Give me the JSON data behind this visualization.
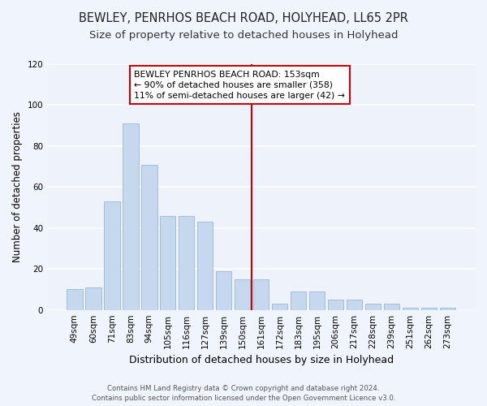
{
  "title1": "BEWLEY, PENRHOS BEACH ROAD, HOLYHEAD, LL65 2PR",
  "title2": "Size of property relative to detached houses in Holyhead",
  "xlabel": "Distribution of detached houses by size in Holyhead",
  "ylabel": "Number of detached properties",
  "categories": [
    "49sqm",
    "60sqm",
    "71sqm",
    "83sqm",
    "94sqm",
    "105sqm",
    "116sqm",
    "127sqm",
    "139sqm",
    "150sqm",
    "161sqm",
    "172sqm",
    "183sqm",
    "195sqm",
    "206sqm",
    "217sqm",
    "228sqm",
    "239sqm",
    "251sqm",
    "262sqm",
    "273sqm"
  ],
  "bar_values": [
    10,
    11,
    53,
    91,
    71,
    46,
    46,
    43,
    19,
    15,
    15,
    3,
    9,
    9,
    5,
    5,
    3,
    3,
    1,
    1,
    1
  ],
  "bar_color": "#c5d8ed",
  "bar_edgecolor": "#9ab8d8",
  "background_color": "#eef2fa",
  "grid_color": "#ffffff",
  "vline_color": "#cc0000",
  "annotation_text": "BEWLEY PENRHOS BEACH ROAD: 153sqm\n← 90% of detached houses are smaller (358)\n11% of semi-detached houses are larger (42) →",
  "annotation_box_color": "#cc0000",
  "ylim": [
    0,
    120
  ],
  "yticks": [
    0,
    20,
    40,
    60,
    80,
    100,
    120
  ],
  "footer": "Contains HM Land Registry data © Crown copyright and database right 2024.\nContains public sector information licensed under the Open Government Licence v3.0.",
  "title_fontsize": 10.5,
  "subtitle_fontsize": 9.5,
  "tick_fontsize": 7.5,
  "ylabel_fontsize": 8.5,
  "xlabel_fontsize": 9,
  "footer_fontsize": 6.2,
  "annotation_fontsize": 7.8
}
